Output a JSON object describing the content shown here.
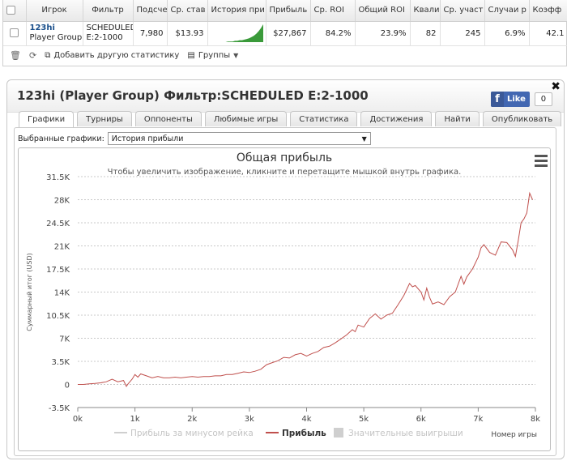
{
  "stats_table": {
    "headers": [
      "Игрок",
      "Фильтр",
      "Подсчет",
      "Ср. став",
      "История при",
      "Прибыль",
      "Ср. ROI",
      "Общий ROI",
      "Квалиф",
      "Ср. участ",
      "Случаи р",
      "Коэфф"
    ],
    "row": {
      "player_name": "123hi",
      "player_group": "Player Group",
      "filter_line1": "SCHEDULED",
      "filter_line2": "E:2-1000",
      "count": "7,980",
      "avg_stake": "$13.93",
      "profit": "$27,867",
      "avg_roi": "84.2%",
      "total_roi": "23.9%",
      "qualified": "82",
      "avg_entries": "245",
      "cases": "6.9%",
      "coef": "42.1"
    },
    "sparkline": [
      0,
      0,
      0,
      0,
      0,
      0,
      0,
      1,
      1,
      1,
      2,
      2,
      3,
      3,
      4,
      5,
      6,
      8,
      10,
      13,
      17,
      22,
      28
    ],
    "sparkline_color": "#3a9a3a"
  },
  "toolbar": {
    "add_stats_label": "Добавить другую статистику",
    "groups_label": "Группы"
  },
  "dialog": {
    "title": "123hi (Player Group) Фильтр:SCHEDULED E:2-1000",
    "fb_like_label": "Like",
    "fb_like_count": "0",
    "tabs": [
      "Графики",
      "Турниры",
      "Оппоненты",
      "Любимые игры",
      "Статистика",
      "Достижения",
      "Найти",
      "Опубликовать"
    ],
    "active_tab": 0
  },
  "chart_select": {
    "label": "Выбранные графики:",
    "value": "История прибыли"
  },
  "chart_data": {
    "type": "line",
    "title": "Общая прибыль",
    "subtitle": "Чтобы увеличить изображение, кликните и перетащите мышкой внутрь графика.",
    "xlabel": "Номер игры",
    "ylabel": "Суммарный итог (USD)",
    "xlim": [
      0,
      8000
    ],
    "ylim": [
      -3500,
      31500
    ],
    "x_ticks": [
      "0k",
      "1k",
      "2k",
      "3k",
      "4k",
      "5k",
      "6k",
      "7k",
      "8k"
    ],
    "y_ticks": [
      "-3.5K",
      "0",
      "3.5K",
      "7K",
      "10.5K",
      "14K",
      "17.5K",
      "21K",
      "24.5K",
      "28K",
      "31.5K"
    ],
    "legend": [
      "Прибыль за минусом рейка",
      "Прибыль",
      "Значительные выигрыши"
    ],
    "legend_placement": "bottom",
    "series": [
      {
        "name": "Прибыль",
        "color": "#c0504d",
        "x": [
          0,
          100,
          200,
          300,
          400,
          500,
          600,
          700,
          800,
          850,
          880,
          900,
          950,
          1000,
          1050,
          1100,
          1200,
          1300,
          1400,
          1500,
          1600,
          1700,
          1800,
          1900,
          2000,
          2100,
          2200,
          2300,
          2400,
          2500,
          2600,
          2700,
          2800,
          2900,
          3000,
          3100,
          3200,
          3300,
          3400,
          3500,
          3600,
          3700,
          3800,
          3900,
          4000,
          4100,
          4200,
          4300,
          4400,
          4500,
          4600,
          4700,
          4800,
          4850,
          4900,
          5000,
          5100,
          5200,
          5300,
          5400,
          5500,
          5600,
          5700,
          5800,
          5850,
          5900,
          6000,
          6050,
          6100,
          6150,
          6200,
          6300,
          6400,
          6500,
          6600,
          6700,
          6750,
          6800,
          6900,
          7000,
          7050,
          7100,
          7200,
          7300,
          7400,
          7500,
          7600,
          7650,
          7700,
          7750,
          7800,
          7850,
          7900,
          7950
        ],
        "values": [
          0,
          0,
          100,
          150,
          250,
          400,
          800,
          400,
          600,
          -300,
          100,
          300,
          800,
          1500,
          1100,
          1600,
          1300,
          1000,
          1200,
          1000,
          1000,
          1100,
          1000,
          1100,
          1200,
          1100,
          1200,
          1200,
          1300,
          1300,
          1500,
          1500,
          1700,
          1900,
          1800,
          2000,
          2300,
          3000,
          3300,
          3600,
          4100,
          4000,
          4500,
          4700,
          4300,
          4700,
          5000,
          5600,
          5800,
          6300,
          6900,
          7500,
          8300,
          8000,
          9000,
          8700,
          10000,
          10700,
          9900,
          10500,
          10800,
          12100,
          13500,
          15300,
          14800,
          15000,
          14000,
          12800,
          14600,
          13200,
          12200,
          12500,
          12100,
          13300,
          14000,
          16400,
          15200,
          16300,
          17500,
          19300,
          20700,
          21200,
          20000,
          19600,
          21600,
          21500,
          20400,
          19400,
          21800,
          24500,
          25100,
          26000,
          29000,
          28000
        ]
      }
    ],
    "grid": true
  }
}
